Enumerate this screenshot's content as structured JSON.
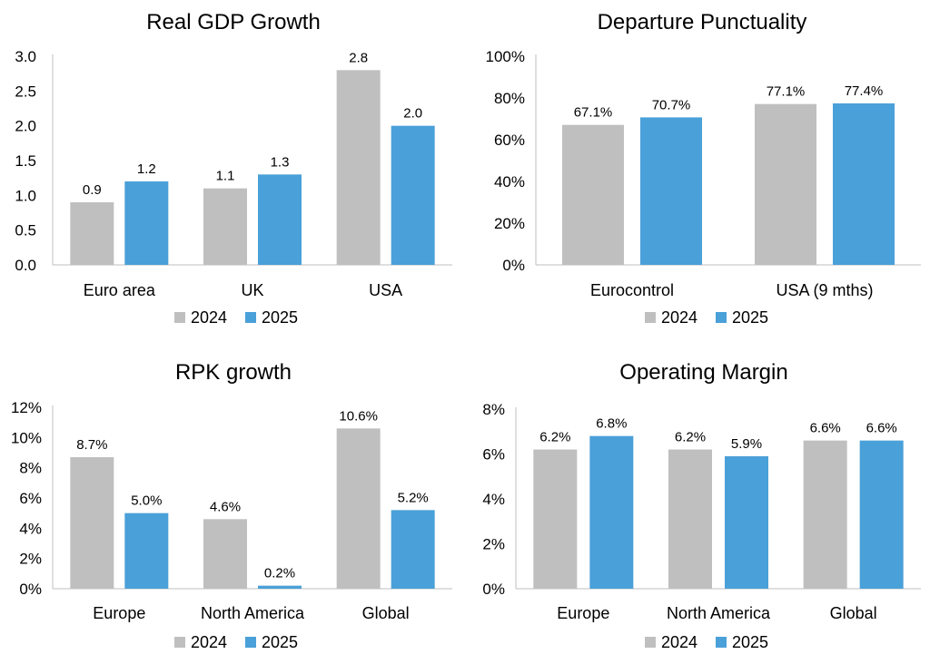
{
  "colors": {
    "series_2024": "#bfbfbf",
    "series_2025": "#4aa0d8",
    "axis": "#bfbfbf"
  },
  "chart_data": [
    {
      "type": "bar",
      "title": "Real GDP Growth",
      "categories": [
        "Euro area",
        "UK",
        "USA"
      ],
      "series": [
        {
          "name": "2024",
          "values": [
            0.9,
            1.1,
            2.8
          ],
          "labels": [
            "0.9",
            "1.1",
            "2.8"
          ]
        },
        {
          "name": "2025",
          "values": [
            1.2,
            1.3,
            2.0
          ],
          "labels": [
            "1.2",
            "1.3",
            "2.0"
          ]
        }
      ],
      "ylim": [
        0,
        3.0
      ],
      "yticks": [
        "0.0",
        "0.5",
        "1.0",
        "1.5",
        "2.0",
        "2.5",
        "3.0"
      ],
      "xlabel": "",
      "ylabel": "",
      "legend": "bottom"
    },
    {
      "type": "bar",
      "title": "Departure Punctuality",
      "categories": [
        "Eurocontrol",
        "USA (9 mths)"
      ],
      "series": [
        {
          "name": "2024",
          "values": [
            67.1,
            77.1
          ],
          "labels": [
            "67.1%",
            "77.1%"
          ]
        },
        {
          "name": "2025",
          "values": [
            70.7,
            77.4
          ],
          "labels": [
            "70.7%",
            "77.4%"
          ]
        }
      ],
      "ylim": [
        0,
        100
      ],
      "yticks": [
        "0%",
        "20%",
        "40%",
        "60%",
        "80%",
        "100%"
      ],
      "xlabel": "",
      "ylabel": "",
      "legend": "bottom"
    },
    {
      "type": "bar",
      "title": "RPK growth",
      "categories": [
        "Europe",
        "North America",
        "Global"
      ],
      "series": [
        {
          "name": "2024",
          "values": [
            8.7,
            4.6,
            10.6
          ],
          "labels": [
            "8.7%",
            "4.6%",
            "10.6%"
          ]
        },
        {
          "name": "2025",
          "values": [
            5.0,
            0.2,
            5.2
          ],
          "labels": [
            "5.0%",
            "0.2%",
            "5.2%"
          ]
        }
      ],
      "ylim": [
        0,
        12
      ],
      "yticks": [
        "0%",
        "2%",
        "4%",
        "6%",
        "8%",
        "10%",
        "12%"
      ],
      "xlabel": "",
      "ylabel": "",
      "legend": "bottom"
    },
    {
      "type": "bar",
      "title": "Operating Margin",
      "categories": [
        "Europe",
        "North America",
        "Global"
      ],
      "series": [
        {
          "name": "2024",
          "values": [
            6.2,
            6.2,
            6.6
          ],
          "labels": [
            "6.2%",
            "6.2%",
            "6.6%"
          ]
        },
        {
          "name": "2025",
          "values": [
            6.8,
            5.9,
            6.6
          ],
          "labels": [
            "6.8%",
            "5.9%",
            "6.6%"
          ]
        }
      ],
      "ylim": [
        0,
        8
      ],
      "yticks": [
        "0%",
        "2%",
        "4%",
        "6%",
        "8%"
      ],
      "xlabel": "",
      "ylabel": "",
      "legend": "bottom"
    }
  ]
}
